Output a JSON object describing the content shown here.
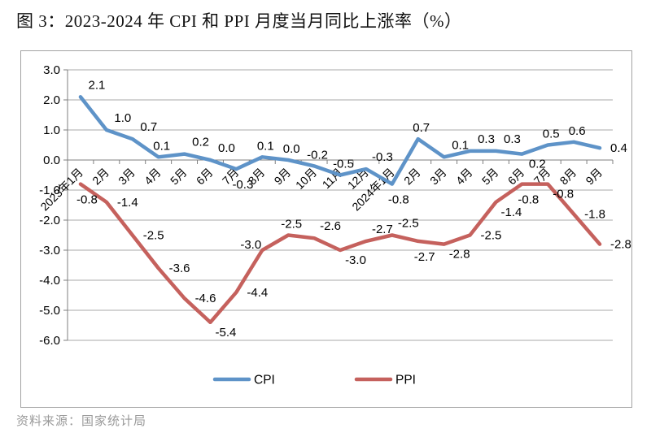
{
  "figure": {
    "title": "图 3：2023-2024 年 CPI 和 PPI 月度当月同比上涨率（%）",
    "source_note": "资料来源：国家统计局"
  },
  "chart_data": {
    "type": "line",
    "title": "图 3：2023-2024 年 CPI 和 PPI 月度当月同比上涨率（%）",
    "xlabel": "",
    "ylabel": "",
    "ylim": [
      -6.0,
      3.0
    ],
    "ytick_step": 1.0,
    "ytick_labels": [
      "3.0",
      "2.0",
      "1.0",
      "0.0",
      "-1.0",
      "-2.0",
      "-3.0",
      "-4.0",
      "-5.0",
      "-6.0"
    ],
    "grid": true,
    "legend_position": "bottom",
    "categories": [
      "2023年1月",
      "2月",
      "3月",
      "4月",
      "5月",
      "6月",
      "7月",
      "8月",
      "9月",
      "10月",
      "11月",
      "12月",
      "2024年1月",
      "2月",
      "3月",
      "4月",
      "5月",
      "6月",
      "7月",
      "8月",
      "9月"
    ],
    "series": [
      {
        "name": "CPI",
        "color": "#5E93C8",
        "values": [
          2.1,
          1.0,
          0.7,
          0.1,
          0.2,
          0.0,
          -0.3,
          0.1,
          0.0,
          -0.2,
          -0.5,
          -0.3,
          -0.8,
          0.7,
          0.1,
          0.3,
          0.3,
          0.2,
          0.5,
          0.6,
          0.4
        ],
        "label_pos": [
          "above-right",
          "above-right",
          "above-right",
          "above",
          "above-right",
          "above-right",
          "below",
          "above",
          "above",
          "above",
          "above",
          "above-right",
          "below",
          "above",
          "above-right",
          "above-right",
          "above-right",
          "below-right",
          "above",
          "above",
          "right"
        ]
      },
      {
        "name": "PPI",
        "color": "#C5615D",
        "values": [
          -0.8,
          -1.4,
          -2.5,
          -3.6,
          -4.6,
          -5.4,
          -4.4,
          -3.0,
          -2.5,
          -2.6,
          -3.0,
          -2.7,
          -2.5,
          -2.7,
          -2.8,
          -2.5,
          -1.4,
          -0.8,
          -0.8,
          -1.8,
          -2.8
        ],
        "label_pos": [
          "below",
          "right",
          "right",
          "right",
          "right",
          "below-right",
          "right",
          "above-left",
          "above",
          "above-right",
          "below-right",
          "above-right",
          "above-right",
          "below",
          "below-right",
          "right",
          "below-right",
          "below",
          "below-right",
          "right",
          "right"
        ]
      }
    ],
    "colors": {
      "grid_line": "#a8a8a8",
      "axis_line": "#7f7f7f",
      "data_label": "#000000",
      "frame_border": "#a3a3a3"
    }
  }
}
